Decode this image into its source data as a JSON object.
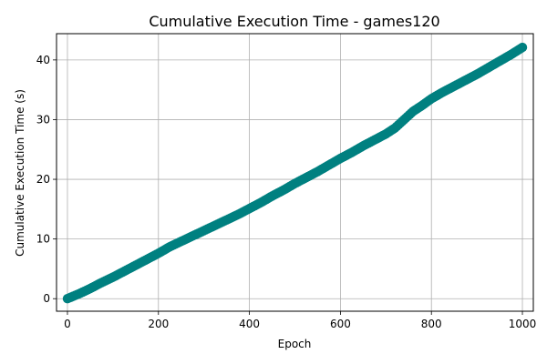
{
  "chart_data": {
    "type": "scatter",
    "title": "Cumulative Execution Time - games120",
    "xlabel": "Epoch",
    "ylabel": "Cumulative Execution Time (s)",
    "xlim": [
      -24,
      1024
    ],
    "ylim": [
      -2.1,
      44.4
    ],
    "xticks": [
      0,
      200,
      400,
      600,
      800,
      1000
    ],
    "yticks": [
      0,
      10,
      20,
      30,
      40
    ],
    "grid": true,
    "color": "#008080",
    "series": [
      {
        "points": [
          [
            0,
            0
          ],
          [
            25,
            0.8
          ],
          [
            50,
            1.7
          ],
          [
            75,
            2.7
          ],
          [
            100,
            3.6
          ],
          [
            125,
            4.6
          ],
          [
            150,
            5.6
          ],
          [
            175,
            6.6
          ],
          [
            200,
            7.6
          ],
          [
            225,
            8.7
          ],
          [
            250,
            9.6
          ],
          [
            275,
            10.5
          ],
          [
            300,
            11.4
          ],
          [
            325,
            12.3
          ],
          [
            350,
            13.2
          ],
          [
            375,
            14.1
          ],
          [
            400,
            15.1
          ],
          [
            425,
            16.1
          ],
          [
            450,
            17.2
          ],
          [
            475,
            18.2
          ],
          [
            500,
            19.3
          ],
          [
            525,
            20.3
          ],
          [
            550,
            21.3
          ],
          [
            575,
            22.4
          ],
          [
            600,
            23.5
          ],
          [
            625,
            24.5
          ],
          [
            650,
            25.6
          ],
          [
            675,
            26.6
          ],
          [
            700,
            27.6
          ],
          [
            720,
            28.6
          ],
          [
            740,
            30.0
          ],
          [
            760,
            31.4
          ],
          [
            780,
            32.4
          ],
          [
            800,
            33.5
          ],
          [
            825,
            34.6
          ],
          [
            850,
            35.6
          ],
          [
            875,
            36.6
          ],
          [
            900,
            37.6
          ],
          [
            925,
            38.7
          ],
          [
            950,
            39.8
          ],
          [
            975,
            40.9
          ],
          [
            1000,
            42.1
          ]
        ]
      }
    ]
  }
}
